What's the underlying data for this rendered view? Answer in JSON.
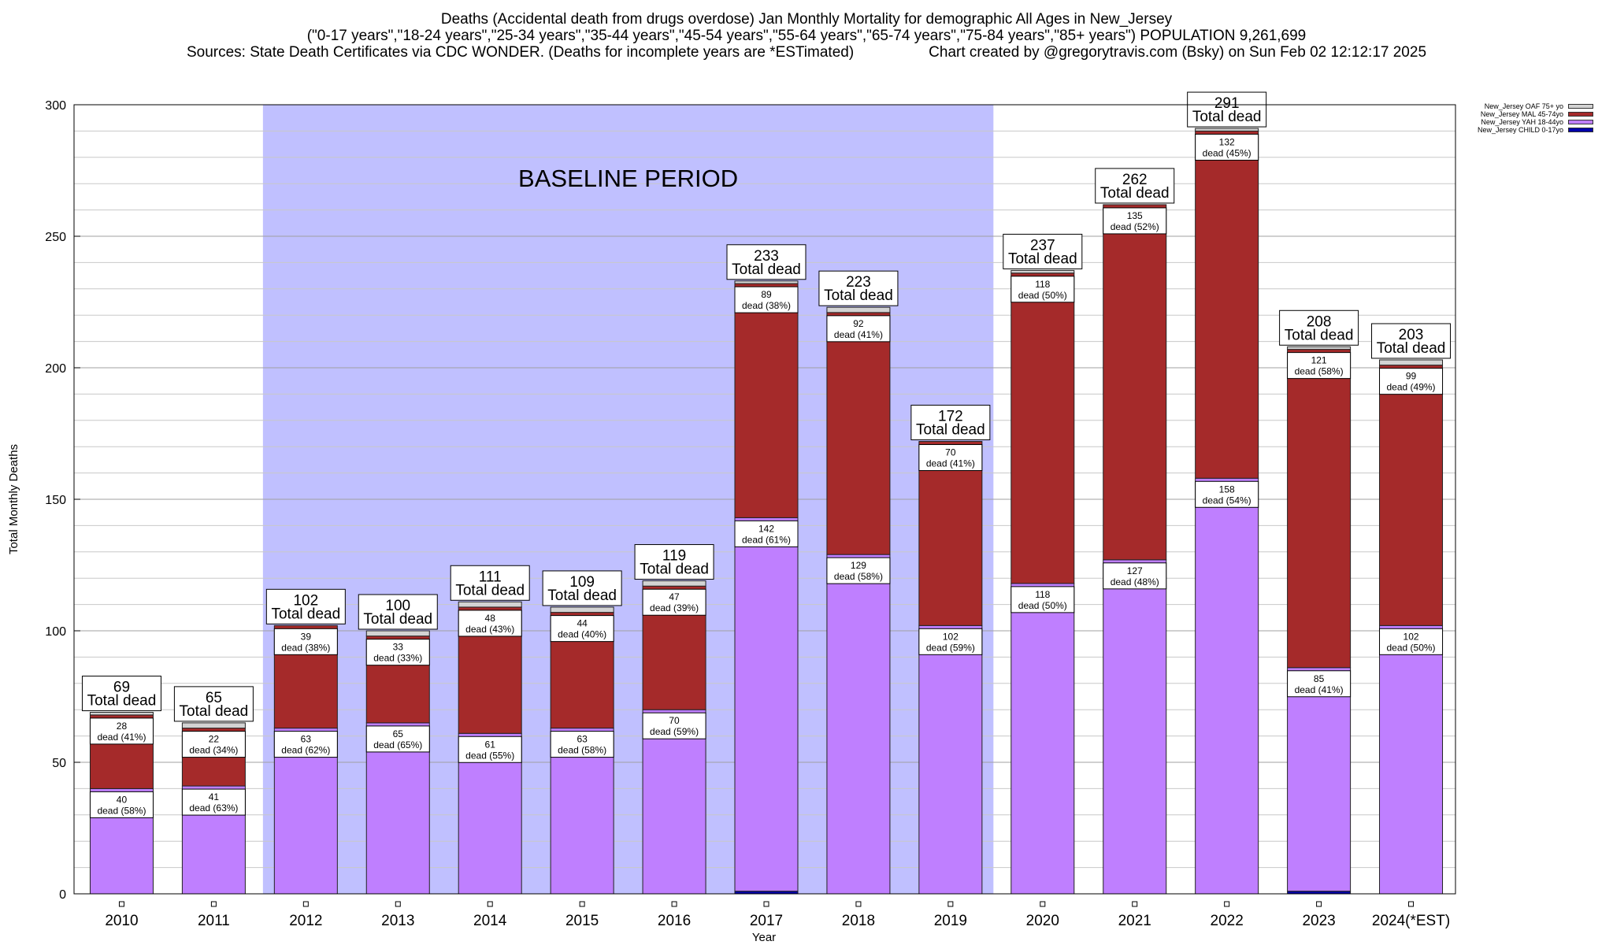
{
  "chart_data": {
    "type": "bar",
    "stacked": true,
    "title": "Deaths (Accidental death from drugs overdose) Jan Monthly Mortality for demographic All Ages in New_Jersey",
    "subtitle": "(\"0-17 years\",\"18-24 years\",\"25-34 years\",\"35-44 years\",\"45-54 years\",\"55-64 years\",\"65-74 years\",\"75-84 years\",\"85+ years\") POPULATION 9,261,699",
    "sources": "Sources: State Death Certificates via CDC WONDER. (Deaths for incomplete years are *ESTimated)",
    "credit": "Chart created by @gregorytravis.com (Bsky) on Sun Feb 02 12:12:17 2025",
    "xlabel": "Year",
    "ylabel": "Total Monthly Deaths",
    "ylim": [
      0,
      300
    ],
    "yticks": [
      0,
      50,
      100,
      150,
      200,
      250,
      300
    ],
    "grid": true,
    "legend_position": "top-right",
    "baseline": {
      "label": "BASELINE PERIOD",
      "from": "2012",
      "to": "2019"
    },
    "total_suffix": "Total dead",
    "categories": [
      "2010",
      "2011",
      "2012",
      "2013",
      "2014",
      "2015",
      "2016",
      "2017",
      "2018",
      "2019",
      "2020",
      "2021",
      "2022",
      "2023",
      "2024(*EST)"
    ],
    "totals": [
      69,
      65,
      102,
      100,
      111,
      109,
      119,
      233,
      223,
      172,
      237,
      262,
      291,
      208,
      203
    ],
    "series": [
      {
        "name": "New_Jersey CHILD 0-17yo",
        "color": "#0000aa",
        "values": [
          0,
          0,
          0,
          0,
          0,
          0,
          0,
          1,
          0,
          0,
          0,
          0,
          0,
          1,
          0
        ]
      },
      {
        "name": "New_Jersey YAH 18-44yo",
        "color": "#bf7fff",
        "values": [
          40,
          41,
          63,
          65,
          61,
          63,
          70,
          142,
          129,
          102,
          118,
          127,
          158,
          85,
          102
        ],
        "labels": [
          "40\ndead (58%)",
          "41\ndead (63%)",
          "63\ndead (62%)",
          "65\ndead (65%)",
          "61\ndead (55%)",
          "63\ndead (58%)",
          "70\ndead (59%)",
          "142\ndead (61%)",
          "129\ndead (58%)",
          "102\ndead (59%)",
          "118\ndead (50%)",
          "127\ndead (48%)",
          "158\ndead (54%)",
          "85\ndead (41%)",
          "102\ndead (50%)"
        ]
      },
      {
        "name": "New_Jersey MAL 45-74yo",
        "color": "#a52a2a",
        "values": [
          28,
          22,
          39,
          33,
          48,
          44,
          47,
          89,
          92,
          70,
          118,
          135,
          132,
          121,
          99
        ],
        "labels": [
          "28\ndead (41%)",
          "22\ndead (34%)",
          "39\ndead (38%)",
          "33\ndead (33%)",
          "48\ndead (43%)",
          "44\ndead (40%)",
          "47\ndead (39%)",
          "89\ndead (38%)",
          "92\ndead (41%)",
          "70\ndead (41%)",
          "118\ndead (50%)",
          "135\ndead (52%)",
          "132\ndead (45%)",
          "121\ndead (58%)",
          "99\ndead (49%)"
        ]
      },
      {
        "name": "New_Jersey OAF 75+ yo",
        "color": "#d3d3d3",
        "values": [
          1,
          2,
          0,
          2,
          2,
          2,
          2,
          1,
          2,
          0,
          1,
          0,
          1,
          1,
          2
        ]
      }
    ]
  }
}
